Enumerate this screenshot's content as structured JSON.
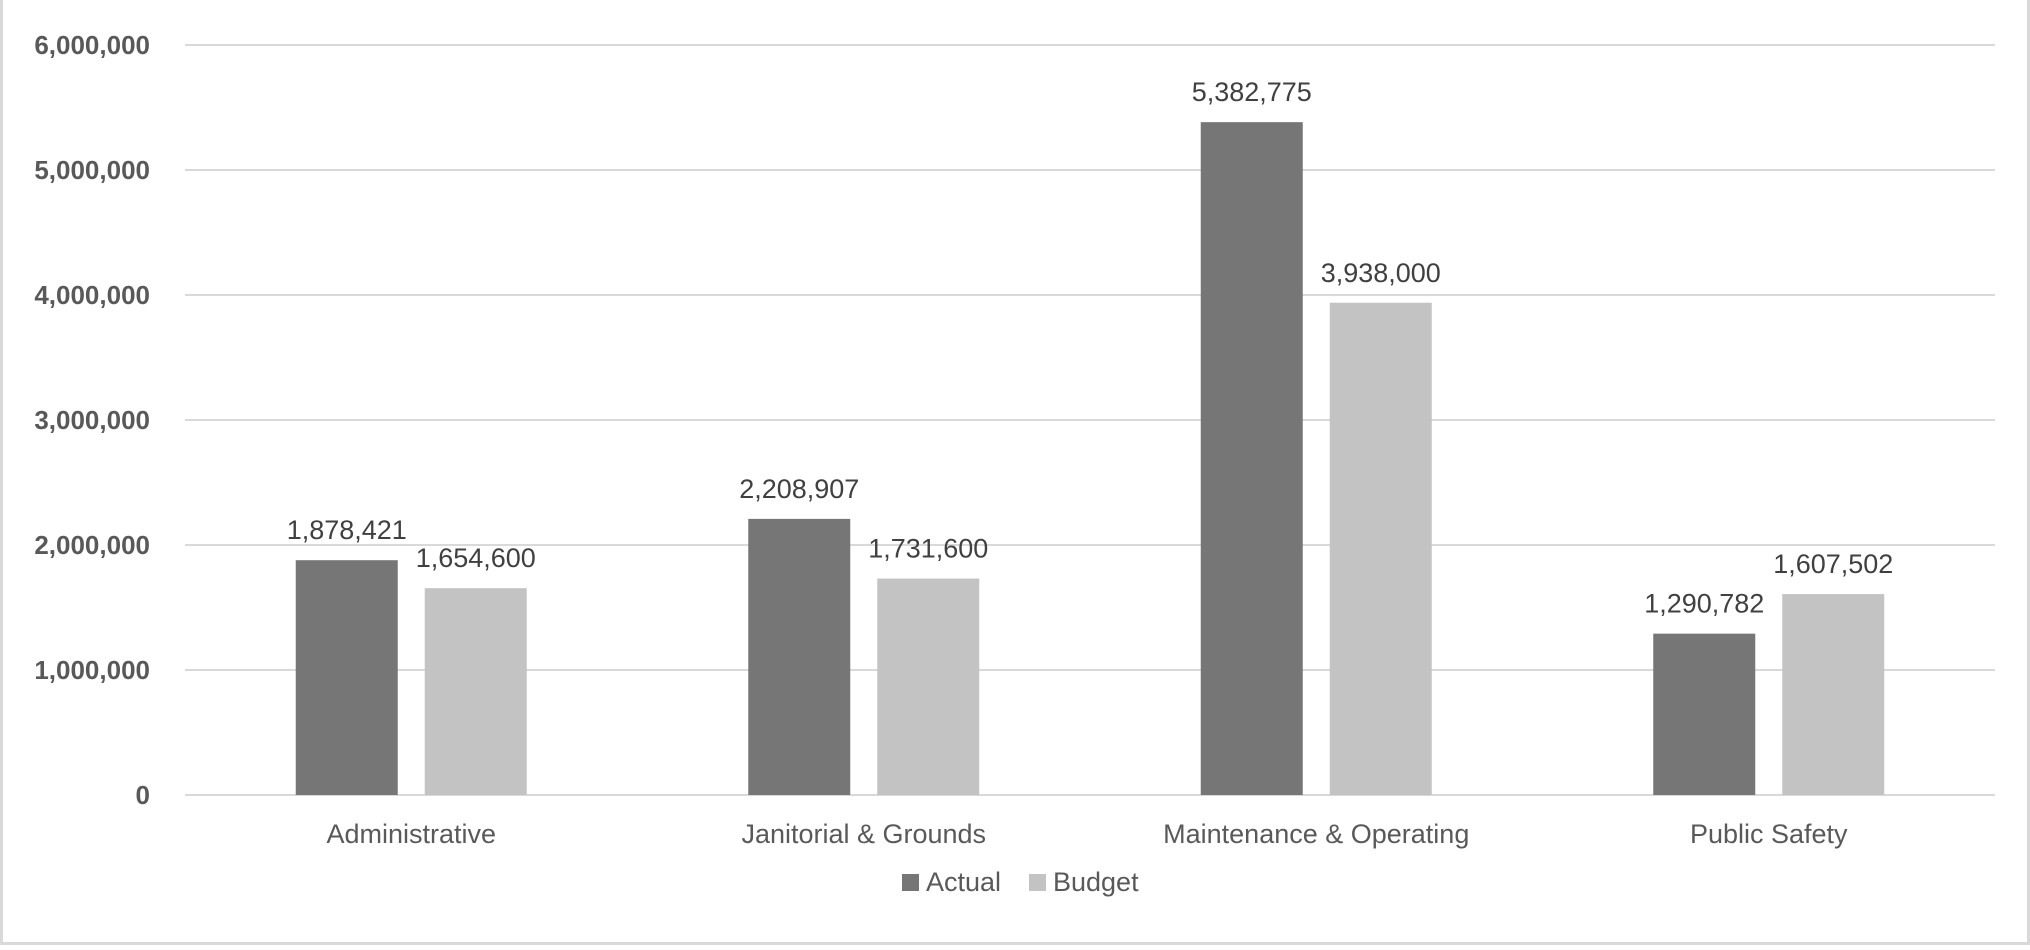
{
  "chart_data": {
    "type": "bar",
    "title": "",
    "xlabel": "",
    "ylabel": "",
    "ylim": [
      0,
      6000000
    ],
    "yticks": [
      0,
      1000000,
      2000000,
      3000000,
      4000000,
      5000000,
      6000000
    ],
    "ytick_labels": [
      "0",
      "1,000,000",
      "2,000,000",
      "3,000,000",
      "4,000,000",
      "5,000,000",
      "6,000,000"
    ],
    "grid": true,
    "legend_position": "bottom",
    "categories": [
      "Administrative",
      "Janitorial & Grounds",
      "Maintenance & Operating",
      "Public Safety"
    ],
    "series": [
      {
        "name": "Actual",
        "color": "#767676",
        "values": [
          1878421,
          2208907,
          5382775,
          1290782
        ],
        "labels": [
          "1,878,421",
          "2,208,907",
          "5,382,775",
          "1,290,782"
        ]
      },
      {
        "name": "Budget",
        "color": "#c3c3c3",
        "values": [
          1654600,
          1731600,
          3938000,
          1607502
        ],
        "labels": [
          "1,654,600",
          "1,731,600",
          "3,938,000",
          "1,607,502"
        ]
      }
    ]
  }
}
